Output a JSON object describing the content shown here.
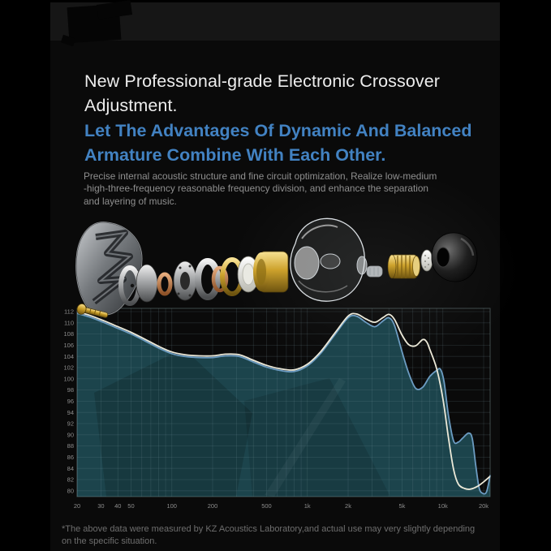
{
  "colors": {
    "background": "#000000",
    "panel": "#0a0a0a",
    "accent_blue": "#4282c2",
    "title_white": "#ededed",
    "body_gray": "#8f8f8f",
    "footnote_gray": "#6e6e6e",
    "chart_fill": "#1e4a53",
    "grid_line": "#7d9ca3",
    "axis_label": "#8d8d8d",
    "curve_light": "#ece9d8",
    "curve_blue": "#6c9cc2"
  },
  "header": {
    "title_lines": [
      "New Professional-grade Electronic Crossover",
      "Adjustment."
    ],
    "subtitle_lines": [
      "Let The Advantages Of Dynamic And Balanced",
      "Armature Combine With Each Other."
    ],
    "description_lines": [
      "Precise internal acoustic structure and fine circuit optimization, Realize low-medium",
      "-high-three-frequency reasonable frequency division, and enhance the separation",
      "and layering of music."
    ]
  },
  "footnote": {
    "lines": [
      "*The above data were measured by KZ Acoustics Laboratory,and actual use may very slightly depending",
      "on the specific situation."
    ]
  },
  "chart_data": {
    "type": "area",
    "title": "",
    "x_scale": "log",
    "xlim": [
      20,
      23000
    ],
    "ylim": [
      80,
      112
    ],
    "grid": true,
    "legend": "none",
    "x_ticks": [
      {
        "label": "20",
        "f": 20
      },
      {
        "label": "30",
        "f": 30
      },
      {
        "label": "40",
        "f": 40
      },
      {
        "label": "50",
        "f": 50
      },
      {
        "label": "100",
        "f": 100
      },
      {
        "label": "200",
        "f": 200
      },
      {
        "label": "500",
        "f": 500
      },
      {
        "label": "1k",
        "f": 1000
      },
      {
        "label": "2k",
        "f": 2000
      },
      {
        "label": "5k",
        "f": 5000
      },
      {
        "label": "10k",
        "f": 10000
      },
      {
        "label": "20k",
        "f": 20000
      }
    ],
    "y_ticks": [
      112,
      110,
      108,
      106,
      104,
      102,
      100,
      98,
      96,
      94,
      92,
      90,
      88,
      86,
      84,
      82,
      80
    ],
    "series": [
      {
        "name": "curve-blue-dynamic",
        "color": "#6c9cc2",
        "fill": true,
        "points": [
          [
            20,
            111.7
          ],
          [
            25,
            111.0
          ],
          [
            32,
            110.0
          ],
          [
            40,
            109.0
          ],
          [
            50,
            108.0
          ],
          [
            63,
            106.8
          ],
          [
            80,
            105.5
          ],
          [
            100,
            104.5
          ],
          [
            125,
            104.0
          ],
          [
            160,
            103.8
          ],
          [
            200,
            103.8
          ],
          [
            250,
            104.1
          ],
          [
            315,
            104.0
          ],
          [
            400,
            103.0
          ],
          [
            500,
            102.1
          ],
          [
            630,
            101.5
          ],
          [
            800,
            101.3
          ],
          [
            1000,
            102.3
          ],
          [
            1250,
            104.5
          ],
          [
            1600,
            107.9
          ],
          [
            2000,
            110.9
          ],
          [
            2300,
            111.2
          ],
          [
            2700,
            110.1
          ],
          [
            3150,
            109.3
          ],
          [
            3600,
            110.3
          ],
          [
            4000,
            110.9
          ],
          [
            4400,
            109.5
          ],
          [
            5000,
            104.8
          ],
          [
            5600,
            101.0
          ],
          [
            6300,
            98.3
          ],
          [
            7100,
            98.5
          ],
          [
            8000,
            100.4
          ],
          [
            9000,
            101.5
          ],
          [
            9600,
            101.7
          ],
          [
            10200,
            99.5
          ],
          [
            11000,
            93.5
          ],
          [
            12000,
            88.9
          ],
          [
            13000,
            88.7
          ],
          [
            14000,
            89.4
          ],
          [
            15500,
            90.3
          ],
          [
            16500,
            89.3
          ],
          [
            17500,
            84.5
          ],
          [
            18500,
            80.6
          ],
          [
            19500,
            79.6
          ],
          [
            21000,
            79.8
          ],
          [
            23000,
            82.8
          ]
        ]
      },
      {
        "name": "curve-light-combined",
        "color": "#ece9d8",
        "fill": false,
        "points": [
          [
            20,
            112.0
          ],
          [
            25,
            111.3
          ],
          [
            32,
            110.3
          ],
          [
            40,
            109.3
          ],
          [
            50,
            108.3
          ],
          [
            63,
            107.1
          ],
          [
            80,
            105.8
          ],
          [
            100,
            104.8
          ],
          [
            125,
            104.3
          ],
          [
            160,
            104.1
          ],
          [
            200,
            104.1
          ],
          [
            250,
            104.4
          ],
          [
            315,
            104.3
          ],
          [
            400,
            103.3
          ],
          [
            500,
            102.4
          ],
          [
            630,
            101.8
          ],
          [
            800,
            101.6
          ],
          [
            1000,
            102.6
          ],
          [
            1250,
            104.8
          ],
          [
            1600,
            108.2
          ],
          [
            2000,
            111.2
          ],
          [
            2300,
            111.6
          ],
          [
            2700,
            110.7
          ],
          [
            3150,
            110.1
          ],
          [
            3600,
            110.9
          ],
          [
            4000,
            111.5
          ],
          [
            4400,
            110.6
          ],
          [
            5000,
            107.8
          ],
          [
            5600,
            106.1
          ],
          [
            6300,
            105.9
          ],
          [
            7100,
            107.0
          ],
          [
            7600,
            106.6
          ],
          [
            8000,
            105.3
          ],
          [
            9000,
            101.8
          ],
          [
            10000,
            96.5
          ],
          [
            11000,
            89.5
          ],
          [
            12000,
            83.8
          ],
          [
            13000,
            81.2
          ],
          [
            14500,
            80.4
          ],
          [
            16000,
            80.3
          ],
          [
            18000,
            80.8
          ],
          [
            20000,
            81.6
          ],
          [
            23000,
            82.6
          ]
        ]
      }
    ]
  }
}
